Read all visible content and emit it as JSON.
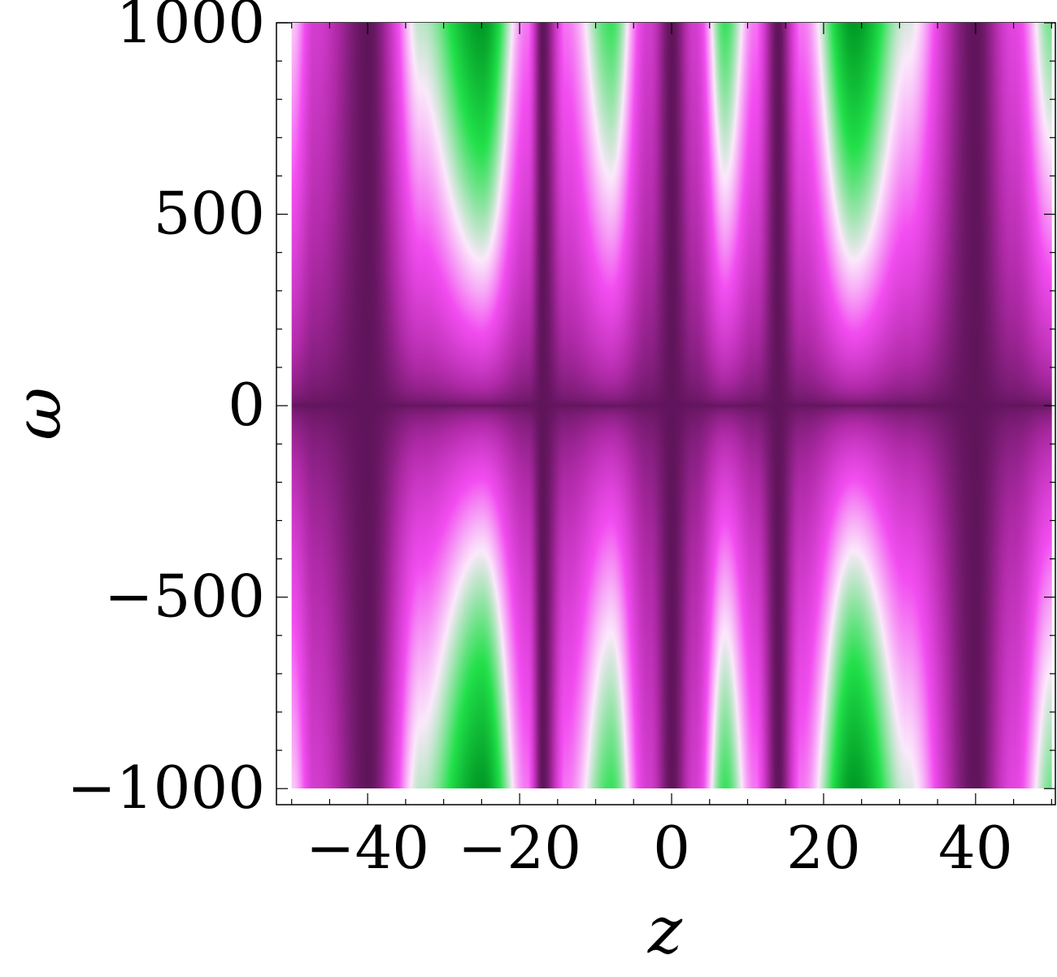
{
  "chart_data": {
    "type": "heatmap",
    "title": "",
    "xlabel": "z",
    "ylabel": "ω",
    "x_range": [
      -50,
      50
    ],
    "y_range": [
      -1000,
      1000
    ],
    "xlim": [
      -52,
      50.5
    ],
    "ylim": [
      -1042,
      1000
    ],
    "x_ticks": [
      {
        "value": -40,
        "label": "−40"
      },
      {
        "value": -20,
        "label": "−20"
      },
      {
        "value": 0,
        "label": "0"
      },
      {
        "value": 20,
        "label": "20"
      },
      {
        "value": 40,
        "label": "40"
      }
    ],
    "y_ticks": [
      {
        "value": 1000,
        "label": "1000"
      },
      {
        "value": 500,
        "label": "500"
      },
      {
        "value": 0,
        "label": "0"
      },
      {
        "value": -500,
        "label": "−500"
      },
      {
        "value": -1000,
        "label": "−1000"
      }
    ],
    "colormap": [
      "#3a0a36",
      "#b02aa8",
      "#f24df0",
      "#fbe8fb",
      "#22e04a",
      "#009a25"
    ],
    "dark_columns_z": [
      -40,
      -17,
      0,
      14,
      40
    ],
    "green_columns_z": [
      -25,
      24
    ],
    "dark_row_omega": 0,
    "grid": false,
    "legend": "none"
  }
}
